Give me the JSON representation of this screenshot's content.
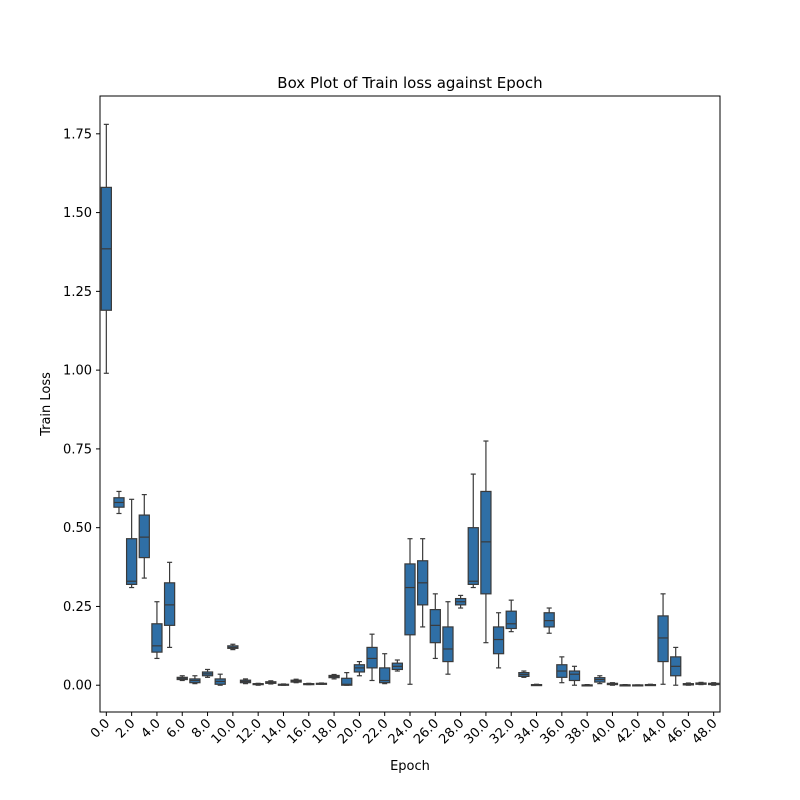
{
  "chart_data": {
    "type": "box",
    "title": "Box Plot of Train loss against Epoch",
    "xlabel": "Epoch",
    "ylabel": "Train Loss",
    "ylim": [
      -0.085,
      1.87
    ],
    "yticks": [
      0.0,
      0.25,
      0.5,
      0.75,
      1.0,
      1.25,
      1.5,
      1.75
    ],
    "ytick_labels": [
      "0.00",
      "0.25",
      "0.50",
      "0.75",
      "1.00",
      "1.25",
      "1.50",
      "1.75"
    ],
    "xtick_labels": [
      "0.0",
      "2.0",
      "4.0",
      "6.0",
      "8.0",
      "10.0",
      "12.0",
      "14.0",
      "16.0",
      "18.0",
      "20.0",
      "22.0",
      "24.0",
      "26.0",
      "28.0",
      "30.0",
      "32.0",
      "34.0",
      "36.0",
      "38.0",
      "40.0",
      "42.0",
      "44.0",
      "46.0",
      "48.0"
    ],
    "box_color": "#2f6fa6",
    "edge_color": "#3a3a3a",
    "boxes": [
      {
        "epoch": 0,
        "lw": 0.99,
        "q1": 1.19,
        "med": 1.385,
        "q3": 1.58,
        "uw": 1.78
      },
      {
        "epoch": 1,
        "lw": 0.545,
        "q1": 0.565,
        "med": 0.58,
        "q3": 0.595,
        "uw": 0.615
      },
      {
        "epoch": 2,
        "lw": 0.31,
        "q1": 0.32,
        "med": 0.33,
        "q3": 0.465,
        "uw": 0.59
      },
      {
        "epoch": 3,
        "lw": 0.34,
        "q1": 0.405,
        "med": 0.47,
        "q3": 0.54,
        "uw": 0.605
      },
      {
        "epoch": 4,
        "lw": 0.085,
        "q1": 0.105,
        "med": 0.125,
        "q3": 0.195,
        "uw": 0.265
      },
      {
        "epoch": 5,
        "lw": 0.12,
        "q1": 0.19,
        "med": 0.255,
        "q3": 0.325,
        "uw": 0.39
      },
      {
        "epoch": 6,
        "lw": 0.015,
        "q1": 0.018,
        "med": 0.022,
        "q3": 0.025,
        "uw": 0.03
      },
      {
        "epoch": 7,
        "lw": 0.005,
        "q1": 0.008,
        "med": 0.015,
        "q3": 0.02,
        "uw": 0.03
      },
      {
        "epoch": 8,
        "lw": 0.025,
        "q1": 0.03,
        "med": 0.036,
        "q3": 0.042,
        "uw": 0.05
      },
      {
        "epoch": 9,
        "lw": 0.0,
        "q1": 0.003,
        "med": 0.012,
        "q3": 0.02,
        "uw": 0.035
      },
      {
        "epoch": 10,
        "lw": 0.113,
        "q1": 0.117,
        "med": 0.12,
        "q3": 0.125,
        "uw": 0.13
      },
      {
        "epoch": 11,
        "lw": 0.005,
        "q1": 0.008,
        "med": 0.012,
        "q3": 0.016,
        "uw": 0.02
      },
      {
        "epoch": 12,
        "lw": 0.0,
        "q1": 0.002,
        "med": 0.004,
        "q3": 0.005,
        "uw": 0.006
      },
      {
        "epoch": 13,
        "lw": 0.004,
        "q1": 0.006,
        "med": 0.009,
        "q3": 0.011,
        "uw": 0.014
      },
      {
        "epoch": 14,
        "lw": 0.0,
        "q1": 0.001,
        "med": 0.002,
        "q3": 0.003,
        "uw": 0.004
      },
      {
        "epoch": 15,
        "lw": 0.008,
        "q1": 0.01,
        "med": 0.013,
        "q3": 0.016,
        "uw": 0.019
      },
      {
        "epoch": 16,
        "lw": 0.002,
        "q1": 0.003,
        "med": 0.004,
        "q3": 0.005,
        "uw": 0.006
      },
      {
        "epoch": 17,
        "lw": 0.003,
        "q1": 0.004,
        "med": 0.005,
        "q3": 0.006,
        "uw": 0.007
      },
      {
        "epoch": 18,
        "lw": 0.02,
        "q1": 0.024,
        "med": 0.028,
        "q3": 0.031,
        "uw": 0.034
      },
      {
        "epoch": 19,
        "lw": 0.0,
        "q1": 0.0,
        "med": 0.003,
        "q3": 0.022,
        "uw": 0.04
      },
      {
        "epoch": 20,
        "lw": 0.03,
        "q1": 0.042,
        "med": 0.055,
        "q3": 0.065,
        "uw": 0.075
      },
      {
        "epoch": 21,
        "lw": 0.015,
        "q1": 0.055,
        "med": 0.085,
        "q3": 0.12,
        "uw": 0.162
      },
      {
        "epoch": 22,
        "lw": 0.005,
        "q1": 0.008,
        "med": 0.015,
        "q3": 0.055,
        "uw": 0.1
      },
      {
        "epoch": 23,
        "lw": 0.045,
        "q1": 0.05,
        "med": 0.06,
        "q3": 0.07,
        "uw": 0.08
      },
      {
        "epoch": 24,
        "lw": 0.003,
        "q1": 0.16,
        "med": 0.31,
        "q3": 0.385,
        "uw": 0.465
      },
      {
        "epoch": 25,
        "lw": 0.185,
        "q1": 0.255,
        "med": 0.325,
        "q3": 0.395,
        "uw": 0.465
      },
      {
        "epoch": 26,
        "lw": 0.085,
        "q1": 0.135,
        "med": 0.19,
        "q3": 0.24,
        "uw": 0.29
      },
      {
        "epoch": 27,
        "lw": 0.035,
        "q1": 0.075,
        "med": 0.115,
        "q3": 0.185,
        "uw": 0.265
      },
      {
        "epoch": 28,
        "lw": 0.245,
        "q1": 0.255,
        "med": 0.265,
        "q3": 0.275,
        "uw": 0.285
      },
      {
        "epoch": 29,
        "lw": 0.31,
        "q1": 0.32,
        "med": 0.33,
        "q3": 0.5,
        "uw": 0.67
      },
      {
        "epoch": 30,
        "lw": 0.135,
        "q1": 0.29,
        "med": 0.455,
        "q3": 0.615,
        "uw": 0.775
      },
      {
        "epoch": 31,
        "lw": 0.055,
        "q1": 0.1,
        "med": 0.145,
        "q3": 0.185,
        "uw": 0.23
      },
      {
        "epoch": 32,
        "lw": 0.17,
        "q1": 0.18,
        "med": 0.195,
        "q3": 0.235,
        "uw": 0.27
      },
      {
        "epoch": 33,
        "lw": 0.025,
        "q1": 0.028,
        "med": 0.034,
        "q3": 0.04,
        "uw": 0.045
      },
      {
        "epoch": 34,
        "lw": 0.0,
        "q1": 0.0,
        "med": 0.001,
        "q3": 0.002,
        "uw": 0.003
      },
      {
        "epoch": 35,
        "lw": 0.165,
        "q1": 0.185,
        "med": 0.205,
        "q3": 0.23,
        "uw": 0.245
      },
      {
        "epoch": 36,
        "lw": 0.008,
        "q1": 0.025,
        "med": 0.045,
        "q3": 0.065,
        "uw": 0.09
      },
      {
        "epoch": 37,
        "lw": 0.0,
        "q1": 0.015,
        "med": 0.035,
        "q3": 0.045,
        "uw": 0.06
      },
      {
        "epoch": 38,
        "lw": 0.0,
        "q1": 0.0,
        "med": 0.0,
        "q3": 0.001,
        "uw": 0.002
      },
      {
        "epoch": 39,
        "lw": 0.005,
        "q1": 0.01,
        "med": 0.018,
        "q3": 0.024,
        "uw": 0.03
      },
      {
        "epoch": 40,
        "lw": 0.0,
        "q1": 0.002,
        "med": 0.004,
        "q3": 0.006,
        "uw": 0.008
      },
      {
        "epoch": 41,
        "lw": 0.0,
        "q1": 0.0,
        "med": 0.001,
        "q3": 0.001,
        "uw": 0.002
      },
      {
        "epoch": 42,
        "lw": 0.0,
        "q1": 0.0,
        "med": 0.0,
        "q3": 0.001,
        "uw": 0.001
      },
      {
        "epoch": 43,
        "lw": 0.0,
        "q1": 0.0,
        "med": 0.001,
        "q3": 0.002,
        "uw": 0.003
      },
      {
        "epoch": 44,
        "lw": 0.003,
        "q1": 0.075,
        "med": 0.15,
        "q3": 0.22,
        "uw": 0.29
      },
      {
        "epoch": 45,
        "lw": 0.0,
        "q1": 0.03,
        "med": 0.06,
        "q3": 0.09,
        "uw": 0.12
      },
      {
        "epoch": 46,
        "lw": 0.0,
        "q1": 0.001,
        "med": 0.003,
        "q3": 0.005,
        "uw": 0.007
      },
      {
        "epoch": 47,
        "lw": 0.002,
        "q1": 0.003,
        "med": 0.005,
        "q3": 0.007,
        "uw": 0.009
      },
      {
        "epoch": 48,
        "lw": 0.0,
        "q1": 0.002,
        "med": 0.004,
        "q3": 0.006,
        "uw": 0.008
      }
    ]
  }
}
